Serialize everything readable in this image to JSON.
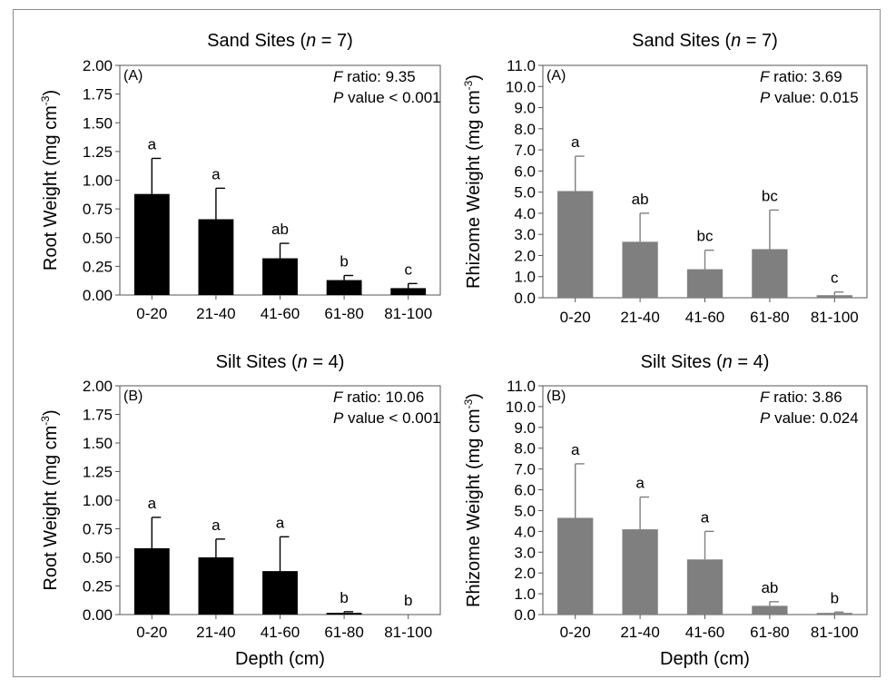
{
  "figure": {
    "xlabel": "Depth (cm)"
  },
  "chart_data": [
    {
      "type": "bar",
      "title_main": "Sand Sites (",
      "title_n": "n",
      "title_tail": " = 7)",
      "panel_label": "(A)",
      "stat1_letter": "F",
      "stat1_text": " ratio:   9.35",
      "stat2_letter": "P",
      "stat2_text": " value < 0.001",
      "ylabel_main": "Root Weight (mg cm",
      "ylabel_sup": "-3",
      "ylabel_tail": ")",
      "xlabel": "",
      "categories": [
        "0-20",
        "21-40",
        "41-60",
        "61-80",
        "81-100"
      ],
      "values": [
        0.88,
        0.66,
        0.32,
        0.13,
        0.06
      ],
      "errors": [
        0.31,
        0.27,
        0.13,
        0.04,
        0.04
      ],
      "letters": [
        "a",
        "a",
        "ab",
        "b",
        "c"
      ],
      "ylim": [
        0,
        2
      ],
      "yticks": [
        "0.00",
        "0.25",
        "0.50",
        "0.75",
        "1.00",
        "1.25",
        "1.50",
        "1.75",
        "2.00"
      ],
      "bar_color": "#000000"
    },
    {
      "type": "bar",
      "title_main": "Sand Sites (",
      "title_n": "n",
      "title_tail": " = 7)",
      "panel_label": "(A)",
      "stat1_letter": "F",
      "stat1_text": " ratio:   3.69",
      "stat2_letter": "P",
      "stat2_text": " value: 0.015",
      "ylabel_main": "Rhizome Weight (mg cm",
      "ylabel_sup": "-3",
      "ylabel_tail": ")",
      "xlabel": "",
      "categories": [
        "0-20",
        "21-40",
        "41-60",
        "61-80",
        "81-100"
      ],
      "values": [
        5.05,
        2.65,
        1.35,
        2.3,
        0.12
      ],
      "errors": [
        1.65,
        1.35,
        0.9,
        1.85,
        0.15
      ],
      "letters": [
        "a",
        "ab",
        "bc",
        "bc",
        "c"
      ],
      "ylim": [
        0,
        11
      ],
      "yticks": [
        "0.0",
        "1.0",
        "2.0",
        "3.0",
        "4.0",
        "5.0",
        "6.0",
        "7.0",
        "8.0",
        "9.0",
        "10.0",
        "11.0"
      ],
      "bar_color": "#7f7f7f"
    },
    {
      "type": "bar",
      "title_main": "Silt Sites (",
      "title_n": "n",
      "title_tail": " = 4)",
      "panel_label": "(B)",
      "stat1_letter": "F",
      "stat1_text": " ratio: 10.06",
      "stat2_letter": "P",
      "stat2_text": " value < 0.001",
      "ylabel_main": "Root Weight (mg cm",
      "ylabel_sup": "-3",
      "ylabel_tail": ")",
      "xlabel": "Depth (cm)",
      "categories": [
        "0-20",
        "21-40",
        "41-60",
        "61-80",
        "81-100"
      ],
      "values": [
        0.58,
        0.5,
        0.38,
        0.015,
        0.0
      ],
      "errors": [
        0.27,
        0.16,
        0.3,
        0.01,
        0.0
      ],
      "letters": [
        "a",
        "a",
        "a",
        "b",
        "b"
      ],
      "ylim": [
        0,
        2
      ],
      "yticks": [
        "0.00",
        "0.25",
        "0.50",
        "0.75",
        "1.00",
        "1.25",
        "1.50",
        "1.75",
        "2.00"
      ],
      "bar_color": "#000000"
    },
    {
      "type": "bar",
      "title_main": "Silt Sites (",
      "title_n": "n",
      "title_tail": " = 4)",
      "panel_label": "(B)",
      "stat1_letter": "F",
      "stat1_text": " ratio:  3.86",
      "stat2_letter": "P",
      "stat2_text": " value: 0.024",
      "ylabel_main": "Rhizome Weight (mg cm",
      "ylabel_sup": "-3",
      "ylabel_tail": ")",
      "xlabel": "Depth (cm)",
      "categories": [
        "0-20",
        "21-40",
        "41-60",
        "61-80",
        "81-100"
      ],
      "values": [
        4.65,
        4.1,
        2.65,
        0.42,
        0.08
      ],
      "errors": [
        2.6,
        1.55,
        1.35,
        0.2,
        0.04
      ],
      "letters": [
        "a",
        "a",
        "a",
        "ab",
        "b"
      ],
      "ylim": [
        0,
        11
      ],
      "yticks": [
        "0.0",
        "1.0",
        "2.0",
        "3.0",
        "4.0",
        "5.0",
        "6.0",
        "7.0",
        "8.0",
        "9.0",
        "10.0",
        "11.0"
      ],
      "bar_color": "#7f7f7f"
    }
  ]
}
